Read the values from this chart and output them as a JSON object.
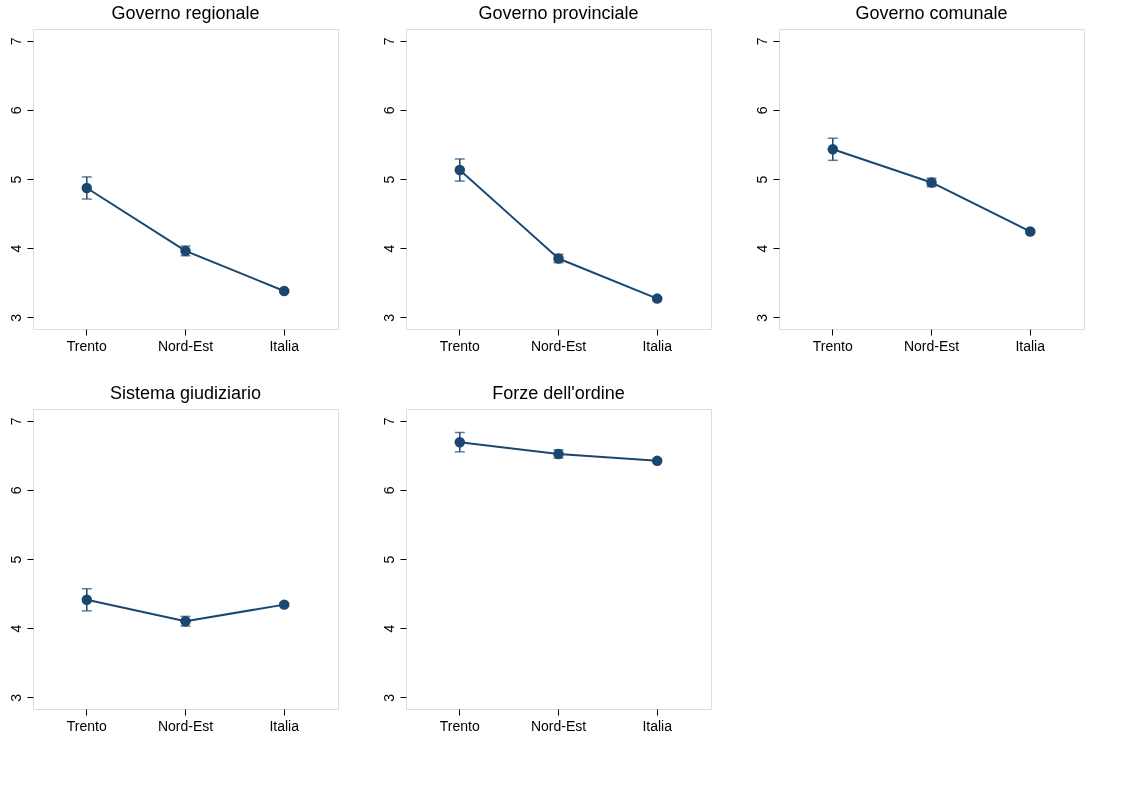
{
  "chart_data": [
    {
      "type": "line",
      "title": "Governo regionale",
      "categories": [
        "Trento",
        "Nord-Est",
        "Italia"
      ],
      "values": [
        4.87,
        3.96,
        3.38
      ],
      "errors": [
        0.16,
        0.07,
        0.02
      ],
      "color": "#1a476f",
      "marker": "circle",
      "ylim": [
        2.83,
        7.17
      ],
      "yticks": [
        3,
        4,
        5,
        6,
        7
      ]
    },
    {
      "type": "line",
      "title": "Governo provinciale",
      "categories": [
        "Trento",
        "Nord-Est",
        "Italia"
      ],
      "values": [
        5.13,
        3.85,
        3.27
      ],
      "errors": [
        0.16,
        0.06,
        0.02
      ],
      "color": "#1a476f",
      "marker": "circle",
      "ylim": [
        2.83,
        7.17
      ],
      "yticks": [
        3,
        4,
        5,
        6,
        7
      ]
    },
    {
      "type": "line",
      "title": "Governo comunale",
      "categories": [
        "Trento",
        "Nord-Est",
        "Italia"
      ],
      "values": [
        5.43,
        4.95,
        4.24
      ],
      "errors": [
        0.16,
        0.06,
        0.02
      ],
      "color": "#1a476f",
      "marker": "circle",
      "ylim": [
        2.83,
        7.17
      ],
      "yticks": [
        3,
        4,
        5,
        6,
        7
      ]
    },
    {
      "type": "line",
      "title": "Sistema giudiziario",
      "categories": [
        "Trento",
        "Nord-Est",
        "Italia"
      ],
      "values": [
        4.41,
        4.1,
        4.34
      ],
      "errors": [
        0.16,
        0.07,
        0.02
      ],
      "color": "#1a476f",
      "marker": "circle",
      "ylim": [
        2.83,
        7.17
      ],
      "yticks": [
        3,
        4,
        5,
        6,
        7
      ]
    },
    {
      "type": "line",
      "title": "Forze dell'ordine",
      "categories": [
        "Trento",
        "Nord-Est",
        "Italia"
      ],
      "values": [
        6.69,
        6.52,
        6.42
      ],
      "errors": [
        0.14,
        0.06,
        0.02
      ],
      "color": "#1a476f",
      "marker": "circle",
      "ylim": [
        2.83,
        7.17
      ],
      "yticks": [
        3,
        4,
        5,
        6,
        7
      ]
    }
  ]
}
